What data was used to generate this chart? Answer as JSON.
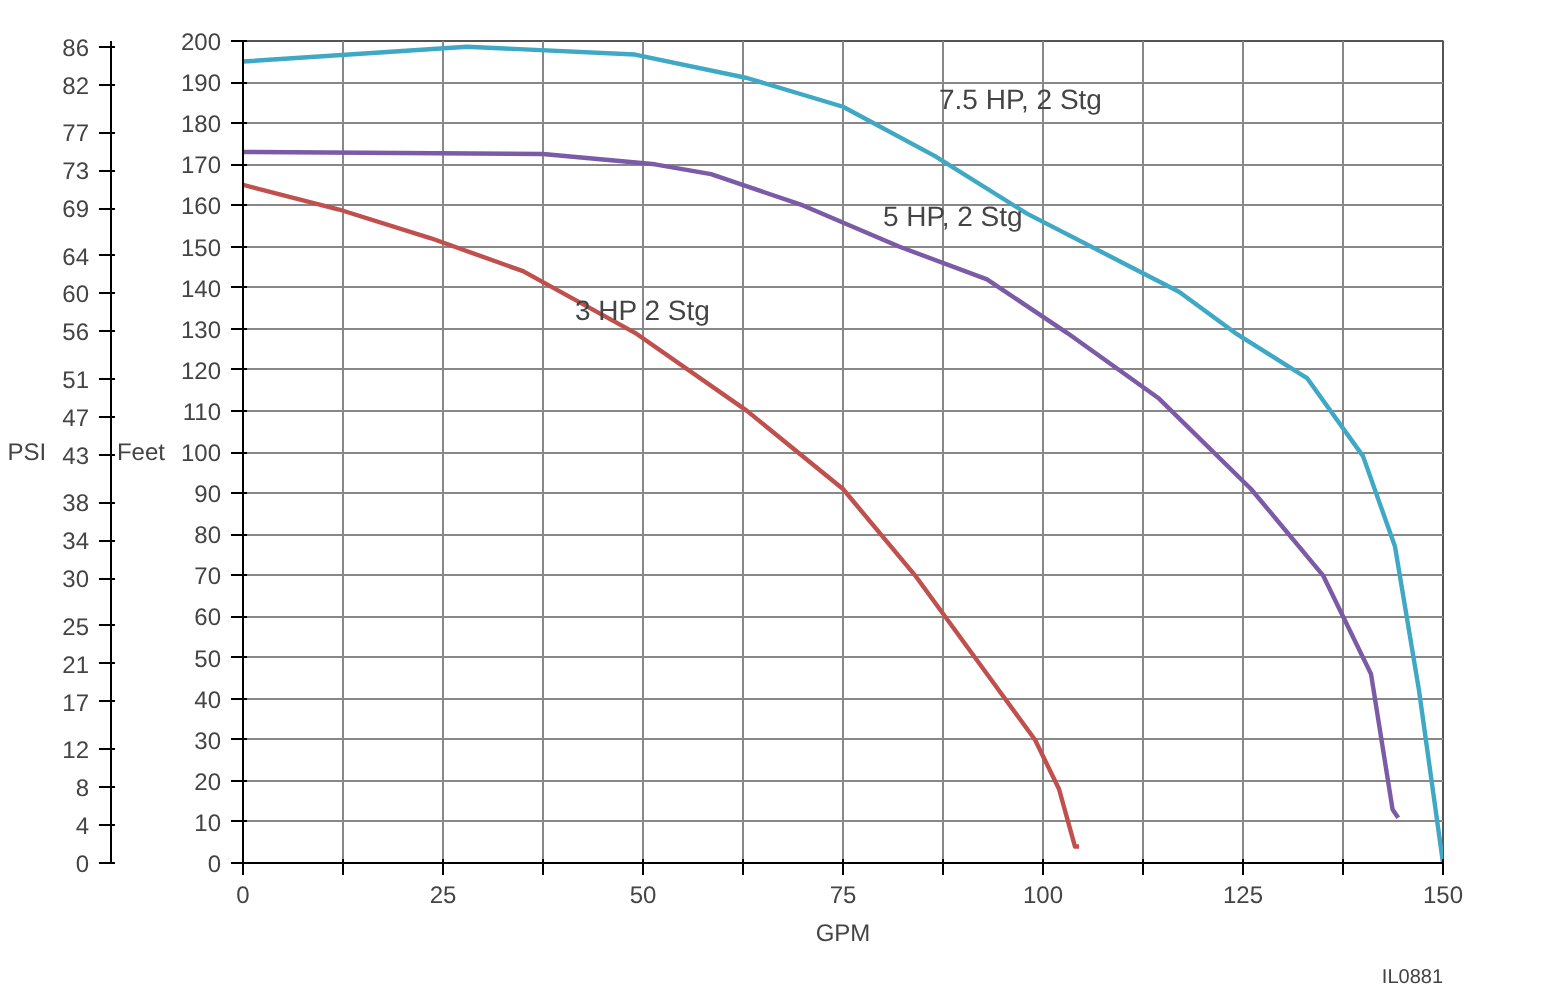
{
  "chart_data": {
    "type": "line",
    "xlabel": "GPM",
    "ylabel": "Feet",
    "y2label": "PSI",
    "xlim": [
      0,
      150
    ],
    "xticks": [
      0,
      {
        "value": 12.5,
        "label": null
      },
      25,
      {
        "value": 37.5,
        "label": null
      },
      50,
      {
        "value": 62.5,
        "label": null
      },
      75,
      {
        "value": 87.5,
        "label": null
      },
      100,
      {
        "value": 112.5,
        "label": null
      },
      125,
      {
        "value": 137.5,
        "label": null
      },
      150
    ],
    "ylim": [
      0,
      200
    ],
    "yticks": [
      0,
      10,
      20,
      30,
      40,
      50,
      60,
      70,
      80,
      90,
      100,
      110,
      120,
      130,
      140,
      150,
      160,
      170,
      180,
      190,
      200
    ],
    "y2lim": [
      0,
      86.6
    ],
    "y2ticks": [
      0,
      4,
      8,
      12,
      17,
      21,
      25,
      30,
      34,
      38,
      43,
      47,
      51,
      56,
      60,
      64,
      69,
      73,
      77,
      82,
      86
    ],
    "grid": true,
    "marker": "none",
    "line_style": "solid",
    "series": [
      {
        "color": "#3fa9c5",
        "x": [
          0,
          28,
          49,
          63,
          75,
          86.5,
          98,
          110,
          117,
          124,
          133,
          140,
          144,
          147,
          150
        ],
        "values": [
          195,
          198.6,
          196.7,
          191,
          184,
          172,
          158,
          146,
          139,
          129,
          118,
          99,
          77,
          42,
          0
        ]
      },
      {
        "color": "#7b5aa6",
        "x": [
          0,
          37.5,
          51.5,
          58.5,
          70,
          82,
          93,
          103,
          114.5,
          126,
          135,
          141,
          143.7,
          144.4
        ],
        "values": [
          173,
          172.5,
          170,
          167.6,
          160,
          150,
          142,
          129,
          113,
          91,
          70,
          46,
          13,
          11
        ]
      },
      {
        "color": "#c0504d",
        "x": [
          0,
          12,
          23.5,
          35,
          49,
          63,
          75,
          84,
          93,
          99,
          102,
          104,
          104.5
        ],
        "values": [
          165,
          159,
          152,
          144,
          129,
          110,
          91,
          70,
          46,
          30,
          18,
          4,
          4
        ]
      }
    ],
    "annotations": [
      "7.5 HP, 2 Stg",
      "5 HP, 2 Stg",
      "3 HP 2 Stg",
      "IL0881"
    ]
  }
}
